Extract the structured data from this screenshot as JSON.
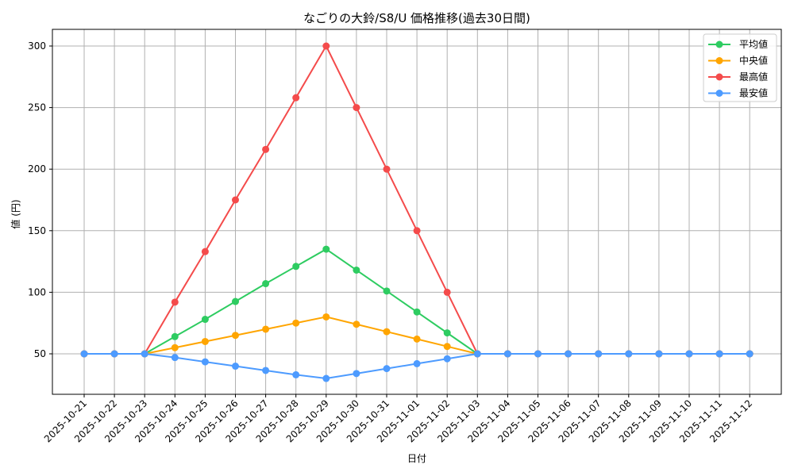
{
  "chart_data": {
    "type": "line",
    "title": "なごりの大鈴/S8/U 価格推移(過去30日間)",
    "xlabel": "日付",
    "ylabel": "値 (円)",
    "ylim": [
      16,
      313
    ],
    "yticks": [
      50,
      100,
      150,
      200,
      250,
      300
    ],
    "grid": true,
    "legend_position": "upper right",
    "x": [
      "2025-10-21",
      "2025-10-22",
      "2025-10-23",
      "2025-10-24",
      "2025-10-25",
      "2025-10-26",
      "2025-10-27",
      "2025-10-28",
      "2025-10-29",
      "2025-10-30",
      "2025-10-31",
      "2025-11-01",
      "2025-11-02",
      "2025-11-03",
      "2025-11-04",
      "2025-11-05",
      "2025-11-06",
      "2025-11-07",
      "2025-11-08",
      "2025-11-09",
      "2025-11-10",
      "2025-11-11",
      "2025-11-12"
    ],
    "series": [
      {
        "name": "平均値",
        "color": "#2ecc61",
        "values": [
          50,
          50,
          50,
          64,
          78,
          92.5,
          107,
          121,
          135,
          118,
          101,
          84,
          67,
          50,
          50,
          50,
          50,
          50,
          50,
          50,
          50,
          50,
          50
        ]
      },
      {
        "name": "中央値",
        "color": "#ffa500",
        "values": [
          50,
          50,
          50,
          55,
          60,
          65,
          70,
          75,
          80,
          74,
          68,
          62,
          56,
          50,
          50,
          50,
          50,
          50,
          50,
          50,
          50,
          50,
          50
        ]
      },
      {
        "name": "最高値",
        "color": "#f44b4b",
        "values": [
          50,
          50,
          50,
          92,
          133,
          175,
          216,
          258,
          300,
          250,
          200,
          150,
          100,
          50,
          50,
          50,
          50,
          50,
          50,
          50,
          50,
          50,
          50
        ]
      },
      {
        "name": "最安値",
        "color": "#4d9bff",
        "values": [
          50,
          50,
          50,
          47,
          43.5,
          40,
          36.5,
          33,
          30,
          34,
          38,
          42,
          46,
          50,
          50,
          50,
          50,
          50,
          50,
          50,
          50,
          50,
          50
        ]
      }
    ]
  }
}
